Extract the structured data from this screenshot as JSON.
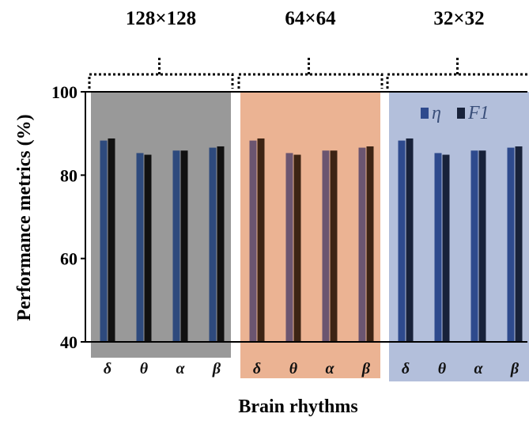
{
  "chart_data": {
    "type": "bar",
    "xlabel": "Brain rhythms",
    "ylabel": "Performance metrics (%)",
    "ylim": [
      40,
      100
    ],
    "yticks": [
      40,
      60,
      80,
      100
    ],
    "legend": {
      "placement": "top-right of third panel"
    },
    "groups": [
      {
        "title": "128×128",
        "background": "#999999",
        "categories": [
          "δ",
          "θ",
          "α",
          "β"
        ],
        "series": [
          {
            "name": "η",
            "color": "#2e4a7d",
            "values": [
              88.3,
              85.3,
              85.9,
              86.6
            ]
          },
          {
            "name": "F1",
            "color": "#111111",
            "values": [
              88.8,
              84.9,
              85.9,
              86.9
            ]
          }
        ]
      },
      {
        "title": "64×64",
        "background": "#ebb393",
        "categories": [
          "δ",
          "θ",
          "α",
          "β"
        ],
        "series": [
          {
            "name": "η",
            "color": "#6b5570",
            "values": [
              88.3,
              85.3,
              85.9,
              86.6
            ]
          },
          {
            "name": "F1",
            "color": "#3d2414",
            "values": [
              88.8,
              84.9,
              85.9,
              86.9
            ]
          }
        ]
      },
      {
        "title": "32×32",
        "background": "#b3bfdb",
        "categories": [
          "δ",
          "θ",
          "α",
          "β"
        ],
        "series": [
          {
            "name": "η",
            "color": "#2e4a8d",
            "values": [
              88.3,
              85.3,
              85.9,
              86.6
            ]
          },
          {
            "name": "F1",
            "color": "#18223a",
            "values": [
              88.8,
              84.9,
              85.9,
              86.9
            ]
          }
        ]
      }
    ]
  }
}
